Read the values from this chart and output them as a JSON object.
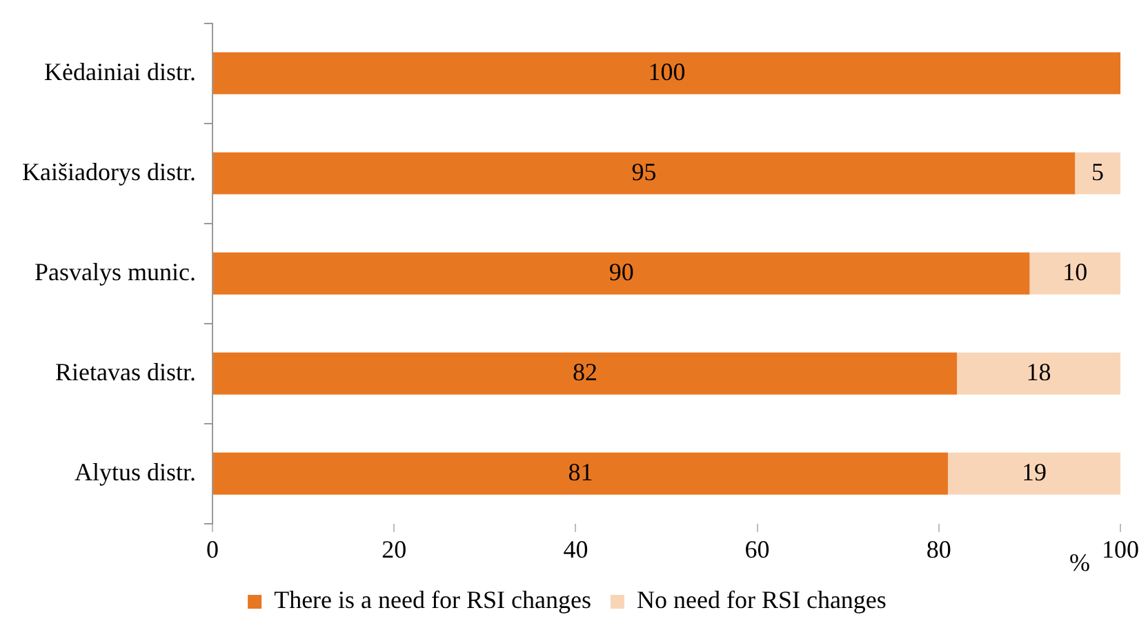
{
  "chart_data": {
    "type": "bar",
    "orientation": "horizontal",
    "stacked": true,
    "xlabel": "%",
    "categories": [
      "Kėdainiai distr.",
      "Kaišiadorys distr.",
      "Pasvalys munic.",
      "Rietavas distr.",
      "Alytus distr."
    ],
    "series": [
      {
        "name": "There is a need for RSI changes",
        "color": "#e87722",
        "values": [
          100,
          95,
          90,
          82,
          81
        ]
      },
      {
        "name": "No need for RSI changes",
        "color": "#f9d5b8",
        "values": [
          null,
          5,
          10,
          18,
          19
        ]
      }
    ],
    "xlim": [
      0,
      100
    ],
    "xticks": [
      0,
      20,
      40,
      60,
      80,
      100
    ],
    "grid": false,
    "legend": "bottom",
    "data_labels": true
  }
}
